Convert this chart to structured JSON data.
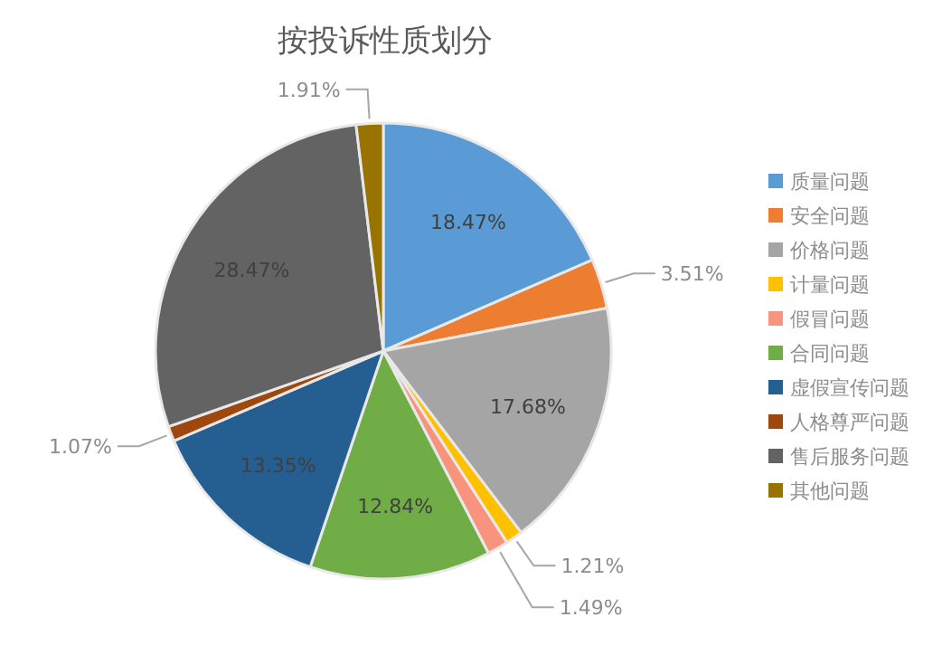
{
  "chart_data": {
    "type": "pie",
    "title": "按投诉性质划分",
    "categories": [
      "质量问题",
      "安全问题",
      "价格问题",
      "计量问题",
      "假冒问题",
      "合同问题",
      "虚假宣传问题",
      "人格尊严问题",
      "售后服务问题",
      "其他问题"
    ],
    "values": [
      18.47,
      3.51,
      17.68,
      1.21,
      1.49,
      12.84,
      13.35,
      1.07,
      28.47,
      1.91
    ],
    "colors": [
      "#5b9bd5",
      "#ed7d31",
      "#a5a5a5",
      "#ffc000",
      "#f8937e",
      "#70ad47",
      "#255e91",
      "#9e480e",
      "#636363",
      "#997300"
    ],
    "value_labels": [
      "18.47%",
      "3.51%",
      "17.68%",
      "1.21%",
      "1.49%",
      "12.84%",
      "13.35%",
      "1.07%",
      "28.47%",
      "1.91%"
    ],
    "legend": "right"
  }
}
